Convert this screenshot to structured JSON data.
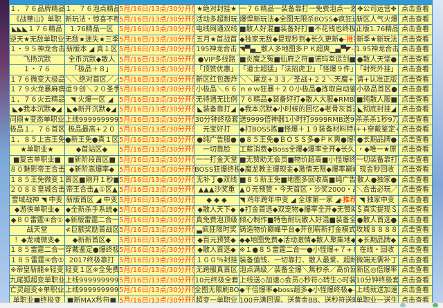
{
  "header": {
    "cols": [
      "",
      "",
      "",
      "",
      "",
      "",
      ""
    ]
  },
  "time_text": "5月/16日/13点/30分开放",
  "recommend_suffix": "-推荐",
  "view_label": "点击查看",
  "colors": {
    "cell_bg": "#fdf99c",
    "border": "#3f89b8",
    "header_bg": "#2f9ad6",
    "time": "#ff3a1a",
    "recommend": "#ff2200"
  },
  "rows": [
    [
      "１．７６品牌精品",
      "１．７６泡点精品",
      "★绝对封挂★",
      "一７６精品一装备靠打一免费泡点一激情",
      "✥公司运营✥"
    ],
    [
      "《战華山》单职",
      "新玩法・惊喜不断",
      "活动多超耐玩",
      "爆悍新玩法◆全图无限杀BOSS◆疯狂送礼",
      "新区人气火爆"
    ],
    [
      "◣◣◣１７６精品",
      "1.76精品一区",
      "电线网通双线",
      "■散人好混■装备好打■不花钱也终极■",
      "正版1.76精品"
    ],
    [
      "逆天★无敌单职业",
      "无敌★迷失★三季",
      "五月★首战首",
      "◆独家无敌◆提现秒到◆长久更新◆",
      "新季★新玩法"
    ],
    [
      "１・９５神龙合击",
      "新版本 ◢ 真１区",
      "195神龙合击",
      "◥▀▄▁散人多地图多ＰＫ超爽▁▄▀◤",
      "1.95神龙合击"
    ],
    [
      "飞扬沉默",
      "全币沉默◆散人",
      "●VIP多线路",
      "■炎魔之冤■仙府之符■诺玛幸运剑■",
      "●散人天堂●"
    ],
    [
      "１・７６",
      "「极品＋８」",
      "「顶赞优惠」",
      "「道士超猛」「法招虎卫」「怪爆９件」",
      "「封死外挂」"
    ],
    [
      "１７６微变大极品",
      "＼＼绝对首区／／",
      "新区红包轰炸",
      "＼＼屠龙+３３／圣战+２２＼天魔+３０",
      "请+认准正版"
    ],
    [
      "１７９火龙暴麻痹",
      "运９创＼２０圣手",
      "小极品＼６６",
      "ｎｅｗ狂暴＋２０小极品●拣取自动鉴定",
      "小极品首区●"
    ],
    [
      "１．７６火云精品",
      "◥ 火爆一区 ◢",
      "无待遇无比例",
      "７６精品◆装备好打◆散人大服◆RMB回",
      "■纯散人服■"
    ],
    [
      "◣◆我本沉默◆◢",
      "◣◆新开沉默◆◢",
      "◣装备靠打◢",
      "◆我本沉默◆小时候的回忆◆老骨灰首选",
      "◣彻底封挂◢"
    ],
    [
      "问鼎★变态单职业",
      "上线9999999999级",
      "30分钟终极套",
      "送9999倍神器1小时打9999RMB送9999时装",
      "杀杀杀1秒9刀"
    ],
    [
      "极品１．７６首区",
      "极品最高+２０",
      "元宝好打",
      "◆打BOSS拣■怪爆＋１９装备材料特戒",
      "++穿戴鉴定++"
    ],
    [
      "１．８５上古王免",
      "●新王免●真１区",
      "●纯广告服●",
      "●８５王免●ＢＯＳＳ多●ＰＫ爽●爆率",
      "●长期品牌●"
    ],
    [
      "★单职业★",
      "◆首站区◆",
      "一切靠脸",
      "工薪消费◆Boss全爆◆爆率全开◆长久稳",
      "・◆唯一★原"
    ],
    [
      "■复古单职业■",
      "■新阶段首区■",
      "一一打金天堂",
      "■无赞助无会员■物价超高■小怪爆终极",
      "一切装备靠打"
    ],
    [
      "８０魅影帝王合击",
      "◆新阶高爆率◆",
      "BOSS狂爆终极",
      "◆魔龙教主爆现金◆激情无限◆爆率巅峰",
      "现金秒回收"
    ],
    [
      "１８５王免微变１",
      "首区■刚开１秒■",
      "无补丁●双线",
      "■８５新王免■地图多回收高■纯广告散",
      "散人●独家●"
    ],
    [
      "２０８８皇城合击",
      "帝王合击▲①区▲",
      "▲▲▲沙奖重",
      "▲０元预赞・今天首区・沙奖2000・战合",
      "＼合击必玩／"
    ],
    [
      "雪域战神 ◥ 中变",
      "新版首区 ◢ 中变",
      "◆ ◆ ◆",
      "◥ 鸡年跨年中变 ◢ 全球第一家 ◢",
      "◥ 独家中变"
    ],
    [
      "◆游侠单职业◆",
      "◆全新杀手系统◆",
      "◆散人天下◆",
      "◆打金首选◆双宠物◆爆率全开◆无赞助",
      "＄真实提现＄"
    ],
    [
      "◆８０雷霆④合①",
      "◆新版雷霆二合一",
      "真免费泡顶级",
      "倾心制作■特色耐玩散人好混■装备全爆",
      "●散人首选●"
    ],
    [
      "战天堂",
      "≮巨额奖励首战区",
      "▃疯狂限时奖",
      "铸造物价巅峰平台◆开创崭新打金模式",
      "攻城８８８８"
    ],
    [
      "！◆龙魂微变◆",
      "◆新新首区◆",
      "◆百元预赞◆",
      "◆◆地图免费◆活动激情◆散人聚集地◆",
      "◆长期品牌◆"
    ],
    [
      "１８５雷霆二合一",
      "穿戴鉴定●爆终极",
      "◆散人首选◆",
      "※１●８５雷霆二合一●小怪爆+７+８+",
      "在线・回收"
    ],
    [
      "１８５雷霆④合①",
      "2017终极靠打",
      "１００％封挂",
      "装备值钱、一切靠打、散人最爱、超耐玩",
      "微端无需补丁"
    ],
    [
      "※帝皇斩龍※轻变",
      "轻变１区※全免费",
      "无跨服真首区",
      "泡点满级／装备全爆＼無秒杀／高价回收",
      "新区◎倍爆率"
    ],
    [
      "九尾狐超变单职业",
      "上线9999999999级",
      "10元终极全套",
      "上线送◇加速◇会员◇秒符◇转生◇时装",
      "10分钟终极套"
    ],
    [
      "亡灵超变※单职业",
      "上线9999999999级",
      "全图无限刷BO",
      "◆千倍爆率◆boss超多◆小怪爆终极◆",
      "上线就送加速"
    ],
    [
      "单职业■终极变",
      "■新MAX秒符■",
      "超变一单职业",
      "100元满回调、送黄金BB、送秒符送时装",
      "单职业一送生"
    ]
  ]
}
